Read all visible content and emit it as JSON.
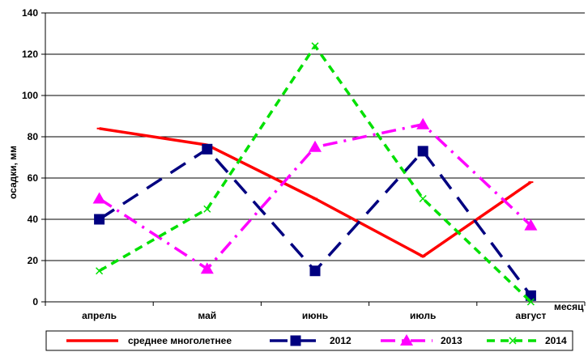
{
  "chart_data": {
    "type": "line",
    "categories": [
      "апрель",
      "май",
      "июнь",
      "июль",
      "август"
    ],
    "xlabel": "месяц",
    "ylabel": "осадки, мм",
    "ylim": [
      0,
      140
    ],
    "yticks": [
      0,
      20,
      40,
      60,
      80,
      100,
      120,
      140
    ],
    "grid": true,
    "legend_position": "bottom",
    "series": [
      {
        "name": "среднее многолетнее",
        "values": [
          84,
          76,
          50,
          22,
          58
        ],
        "color": "#ff0000",
        "dash": "solid",
        "marker": "dash"
      },
      {
        "name": "2012",
        "values": [
          40,
          74,
          15,
          73,
          3
        ],
        "color": "#000080",
        "dash": "long-dash",
        "marker": "square"
      },
      {
        "name": "2013",
        "values": [
          50,
          16,
          75,
          86,
          37
        ],
        "color": "#ff00ff",
        "dash": "dash-dot",
        "marker": "triangle"
      },
      {
        "name": "2014",
        "values": [
          15,
          45,
          124,
          50,
          0
        ],
        "color": "#00e000",
        "dash": "short-dash",
        "marker": "x"
      }
    ]
  }
}
